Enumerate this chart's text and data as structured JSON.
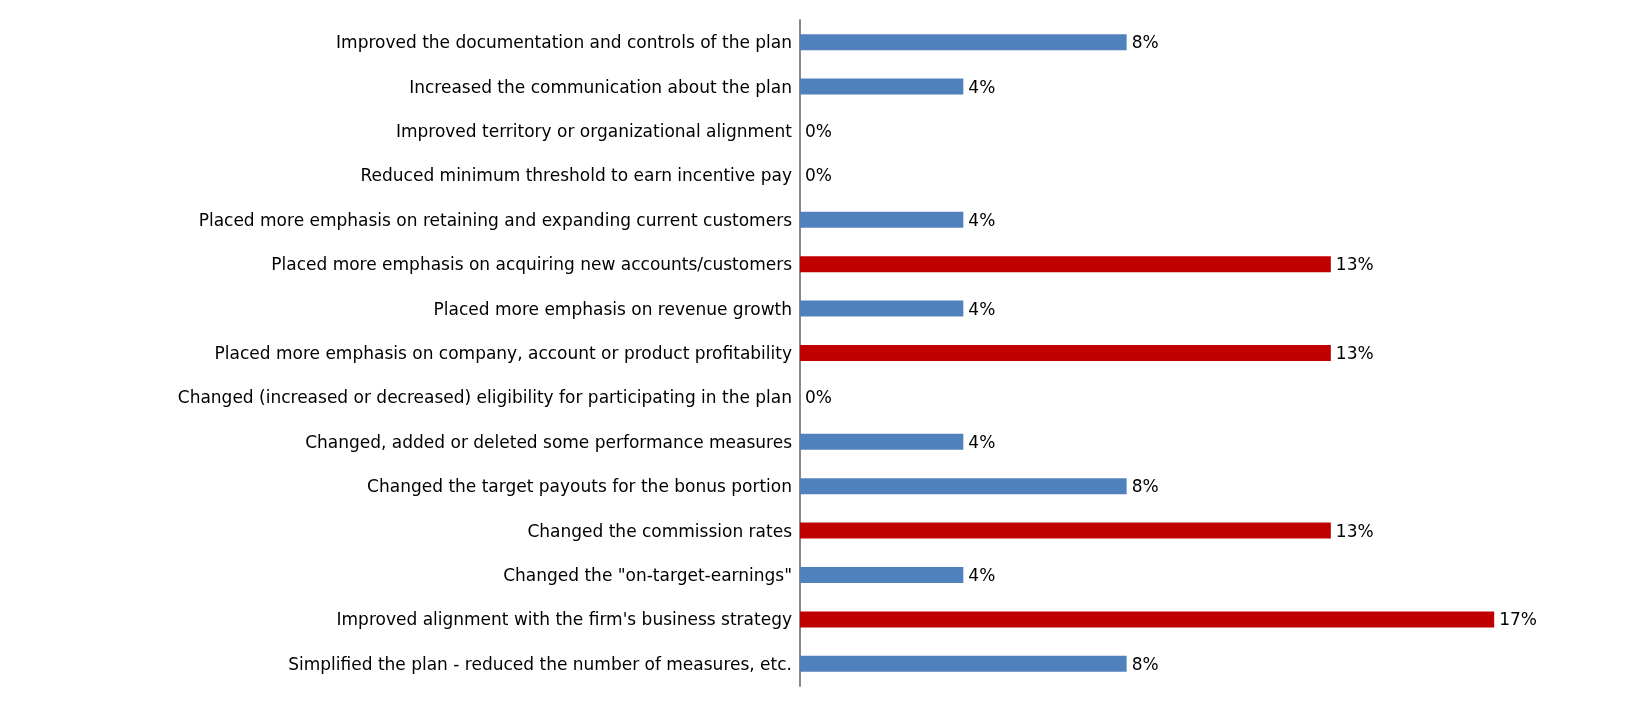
{
  "chart_data": {
    "type": "bar",
    "orientation": "horizontal",
    "categories": [
      "Improved the documentation and controls of the plan",
      "Increased the communication about the plan",
      "Improved territory or organizational alignment",
      "Reduced minimum threshold to earn incentive pay",
      "Placed more emphasis on retaining and expanding current customers",
      "Placed more emphasis on acquiring new accounts/customers",
      "Placed more emphasis on revenue growth",
      "Placed more emphasis on company, account or product profitability",
      "Changed (increased or decreased) eligibility for participating in the plan",
      "Changed, added or deleted some performance measures",
      "Changed the target payouts for the bonus portion",
      "Changed the commission rates",
      "Changed the \"on-target-earnings\"",
      "Improved alignment with the firm's business strategy",
      "Simplified the plan - reduced the number of measures, etc."
    ],
    "values": [
      8,
      4,
      0,
      0,
      4,
      13,
      4,
      13,
      0,
      4,
      8,
      13,
      4,
      17,
      8
    ],
    "value_labels": [
      "8%",
      "4%",
      "0%",
      "0%",
      "4%",
      "13%",
      "4%",
      "13%",
      "0%",
      "4%",
      "8%",
      "13%",
      "4%",
      "17%",
      "8%"
    ],
    "colors": [
      "#4f81bd",
      "#4f81bd",
      "#4f81bd",
      "#4f81bd",
      "#4f81bd",
      "#c00000",
      "#4f81bd",
      "#c00000",
      "#4f81bd",
      "#4f81bd",
      "#4f81bd",
      "#c00000",
      "#4f81bd",
      "#c00000",
      "#4f81bd"
    ]
  }
}
